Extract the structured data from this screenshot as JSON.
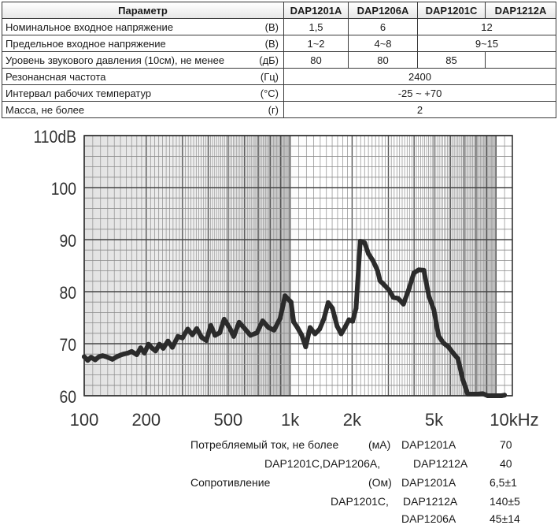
{
  "table": {
    "header": {
      "parameter": "Параметр",
      "models": [
        "DAP1201A",
        "DAP1206A",
        "DAP1201C",
        "DAP1212A"
      ]
    },
    "rows": [
      {
        "label": "Номинальное входное напряжение",
        "unit": "(В)",
        "v1": "1,5",
        "v2": "6",
        "v3": "12"
      },
      {
        "label": "Предельное входное напряжение",
        "unit": "(В)",
        "v1": "1~2",
        "v2": "4~8",
        "v3": "9~15"
      },
      {
        "label": "Уровень звукового давления (10см), не менее",
        "unit": "(дБ)",
        "v1": "80",
        "v2": "80",
        "v3": "85",
        "v4": ""
      },
      {
        "label": "Резонансная частота",
        "unit": "(Гц)",
        "all": "2400"
      },
      {
        "label": "Интервал рабочих температур",
        "unit": "(°С)",
        "all": "-25 ~ +70"
      },
      {
        "label": "Масса, не более",
        "unit": "(г)",
        "all": "2"
      }
    ]
  },
  "chart_data": {
    "type": "line",
    "x_scale": "log",
    "y_tick_labels": [
      "110dB",
      "100",
      "90",
      "80",
      "70",
      "60"
    ],
    "y_ticks": [
      110,
      100,
      90,
      80,
      70,
      60
    ],
    "x_tick_labels": [
      "100",
      "200",
      "500",
      "1k",
      "2k",
      "5k",
      "10kHz"
    ],
    "x_ticks": [
      100,
      200,
      500,
      1000,
      2000,
      5000,
      10000
    ],
    "xlim": [
      100,
      12000
    ],
    "ylim": [
      60,
      110
    ],
    "grid": true,
    "series": [
      {
        "color": "#2b2b2b",
        "x": [
          100,
          104,
          108,
          113,
          118,
          123,
          130,
          137,
          144,
          150,
          155,
          163,
          170,
          180,
          188,
          196,
          205,
          213,
          222,
          232,
          242,
          255,
          268,
          285,
          300,
          318,
          335,
          352,
          372,
          392,
          412,
          432,
          455,
          478,
          498,
          512,
          532,
          565,
          602,
          642,
          690,
          735,
          785,
          835,
          895,
          945,
          1010,
          1040,
          1085,
          1140,
          1190,
          1250,
          1320,
          1390,
          1460,
          1530,
          1605,
          1690,
          1770,
          1850,
          1930,
          2010,
          2090,
          2190,
          2300,
          2400,
          2520,
          2600,
          2660,
          2730,
          2850,
          3010,
          3170,
          3350,
          3550,
          3760,
          3990,
          4220,
          4460,
          4720,
          4990,
          5260,
          5560,
          5870,
          6190,
          6530,
          6890,
          7290,
          7690,
          8120,
          8610,
          9110,
          9410,
          9720,
          10010,
          10320,
          10620,
          11000
        ],
        "y": [
          67.5,
          66.8,
          67.4,
          66.9,
          67.5,
          67.7,
          67.4,
          67.0,
          67.5,
          67.8,
          68.0,
          68.2,
          68.5,
          67.9,
          69.2,
          68.2,
          69.9,
          69.2,
          68.6,
          69.9,
          69.1,
          70.5,
          69.3,
          71.4,
          71.1,
          72.8,
          71.7,
          72.9,
          71.2,
          70.6,
          73.5,
          71.6,
          72.1,
          74.7,
          73.6,
          72.8,
          71.4,
          74.1,
          72.9,
          71.6,
          72.1,
          74.4,
          73.1,
          72.6,
          74.9,
          79.2,
          78.0,
          74.2,
          73.1,
          71.6,
          69.4,
          73.1,
          71.9,
          72.8,
          74.8,
          77.9,
          76.8,
          73.4,
          71.9,
          73.2,
          74.6,
          74.3,
          76.8,
          89.7,
          89.4,
          87.3,
          86.0,
          84.9,
          84.0,
          82.1,
          81.4,
          80.4,
          78.9,
          78.7,
          77.6,
          80.3,
          83.6,
          84.2,
          84.1,
          79.1,
          76.5,
          71.5,
          70.1,
          69.4,
          68.2,
          67.1,
          63.1,
          60.3,
          60.3,
          60.3,
          60.4,
          60.0,
          60.0,
          60.0,
          60.0,
          60.0,
          60.0,
          60.1
        ]
      }
    ]
  },
  "notes": {
    "current_label": "Потребляемый ток, не более",
    "current_unit": "(мА)",
    "current_model_1": "DAP1201A",
    "current_value_1": "70",
    "current_models_2a": "DAP1201C,DAP1206A,",
    "current_models_2b": "DAP1212A",
    "current_value_2": "40",
    "resistance_label": "Сопротивление",
    "resistance_unit": "(Ом)",
    "resistance_model_1": "DAP1201A",
    "resistance_value_1": "6,5±1",
    "resistance_models_2a": "DAP1201C,",
    "resistance_models_2b": "DAP1212A",
    "resistance_value_2": "140±5",
    "resistance_model_3": "DAP1206A",
    "resistance_value_3": "45±14"
  }
}
